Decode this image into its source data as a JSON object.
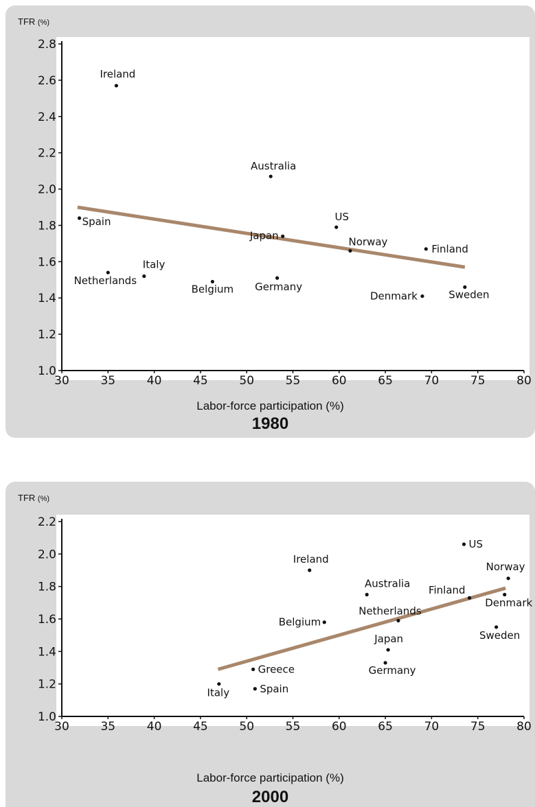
{
  "chart_data": [
    {
      "type": "scatter",
      "title": "1980",
      "xlabel": "Labor-force participation (%)",
      "ylabel": "TFR (%)",
      "xlim": [
        30,
        80
      ],
      "ylim": [
        1.0,
        2.8
      ],
      "xticks": [
        "30",
        "35",
        "40",
        "45",
        "50",
        "55",
        "60",
        "65",
        "70",
        "75",
        "80"
      ],
      "yticks": [
        "1.0",
        "1.2",
        "1.4",
        "1.6",
        "1.8",
        "2.0",
        "2.2",
        "2.4",
        "2.6",
        "2.8"
      ],
      "points": [
        {
          "label": "Ireland",
          "x": 35.9,
          "y": 2.57
        },
        {
          "label": "Australia",
          "x": 52.6,
          "y": 2.07
        },
        {
          "label": "Spain",
          "x": 31.9,
          "y": 1.84
        },
        {
          "label": "US",
          "x": 59.7,
          "y": 1.79
        },
        {
          "label": "Japan",
          "x": 53.9,
          "y": 1.74
        },
        {
          "label": "Norway",
          "x": 61.2,
          "y": 1.66
        },
        {
          "label": "Finland",
          "x": 69.4,
          "y": 1.67
        },
        {
          "label": "Italy",
          "x": 38.9,
          "y": 1.52
        },
        {
          "label": "Netherlands",
          "x": 35.0,
          "y": 1.54
        },
        {
          "label": "Belgium",
          "x": 46.3,
          "y": 1.49
        },
        {
          "label": "Germany",
          "x": 53.3,
          "y": 1.51
        },
        {
          "label": "Denmark",
          "x": 69.0,
          "y": 1.41
        },
        {
          "label": "Sweden",
          "x": 73.6,
          "y": 1.46
        }
      ],
      "trendline": {
        "x": [
          31.7,
          73.6
        ],
        "y": [
          1.9,
          1.57
        ],
        "color": "#a9876b"
      }
    },
    {
      "type": "scatter",
      "title": "2000",
      "xlabel": "Labor-force participation (%)",
      "ylabel": "TFR (%)",
      "xlim": [
        30,
        80
      ],
      "ylim": [
        1.0,
        2.2
      ],
      "xticks": [
        "30",
        "35",
        "40",
        "45",
        "50",
        "55",
        "60",
        "65",
        "70",
        "75",
        "80"
      ],
      "yticks": [
        "1.0",
        "1.2",
        "1.4",
        "1.6",
        "1.8",
        "2.0",
        "2.2"
      ],
      "points": [
        {
          "label": "US",
          "x": 73.5,
          "y": 2.06
        },
        {
          "label": "Ireland",
          "x": 56.8,
          "y": 1.9
        },
        {
          "label": "Norway",
          "x": 78.3,
          "y": 1.85
        },
        {
          "label": "Australia",
          "x": 63.0,
          "y": 1.75
        },
        {
          "label": "Finland",
          "x": 74.1,
          "y": 1.73
        },
        {
          "label": "Denmark",
          "x": 77.9,
          "y": 1.75
        },
        {
          "label": "Netherlands",
          "x": 66.4,
          "y": 1.59
        },
        {
          "label": "Belgium",
          "x": 58.4,
          "y": 1.58
        },
        {
          "label": "Sweden",
          "x": 77.0,
          "y": 1.55
        },
        {
          "label": "Japan",
          "x": 65.3,
          "y": 1.41
        },
        {
          "label": "Germany",
          "x": 65.0,
          "y": 1.33
        },
        {
          "label": "Greece",
          "x": 50.7,
          "y": 1.29
        },
        {
          "label": "Italy",
          "x": 47.0,
          "y": 1.2
        },
        {
          "label": "Spain",
          "x": 50.9,
          "y": 1.17
        }
      ],
      "trendline": {
        "x": [
          46.9,
          78.0
        ],
        "y": [
          1.29,
          1.79
        ],
        "color": "#a9876b"
      }
    }
  ],
  "panels": [
    {
      "ylabel_main": "TFR",
      "ylabel_unit": "(%)",
      "xlabel": "Labor-force participation (%)",
      "year": "1980"
    },
    {
      "ylabel_main": "TFR",
      "ylabel_unit": "(%)",
      "xlabel": "Labor-force participation (%)",
      "year": "2000"
    }
  ]
}
